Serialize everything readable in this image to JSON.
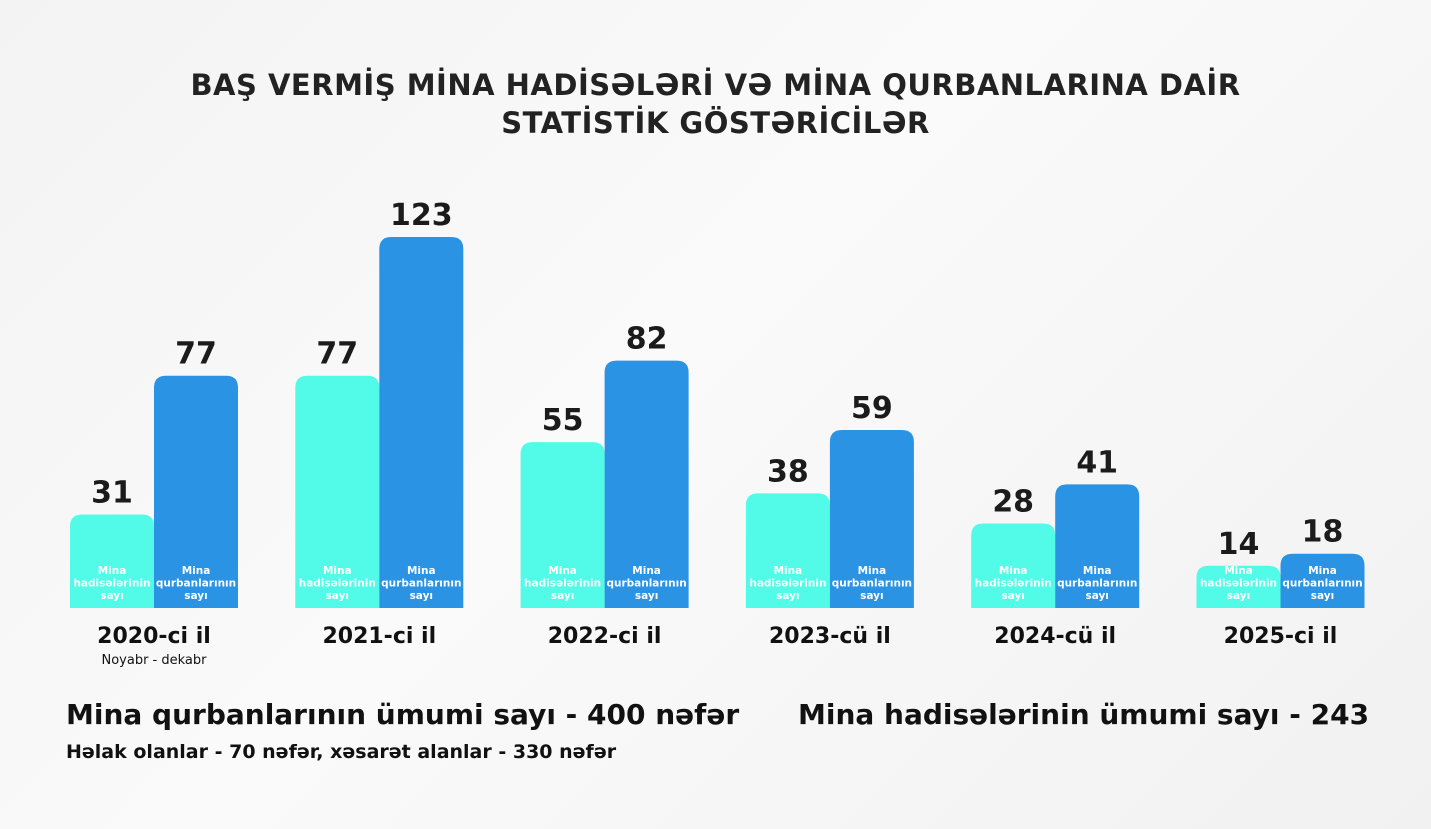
{
  "title": {
    "line1": "BAŞ VERMİŞ MİNA HADİSƏLƏRİ VƏ MİNA QURBANLARINA DAİR",
    "line2": "STATİSTİK GÖSTƏRİCİLƏR"
  },
  "colors": {
    "incidents": "#52fbe8",
    "victims": "#2a93e4",
    "text": "#1b1b1b",
    "inner_label": "#ffffff"
  },
  "chart_data": {
    "type": "bar",
    "categories": [
      "2020-ci il",
      "2021-ci il",
      "2022-ci il",
      "2023-cü il",
      "2024-cü il",
      "2025-ci il"
    ],
    "category_sublabels": [
      "Noyabr - dekabr",
      "",
      "",
      "",
      "",
      ""
    ],
    "series": [
      {
        "name": "Mina hadisələrinin sayı",
        "color": "#52fbe8",
        "values": [
          31,
          77,
          55,
          38,
          28,
          14
        ]
      },
      {
        "name": "Mina qurbanlarının sayı",
        "color": "#2a93e4",
        "values": [
          77,
          123,
          82,
          59,
          41,
          18
        ]
      }
    ],
    "bar_inner_labels": [
      [
        "Mina",
        "hadisələrinin",
        "sayı"
      ],
      [
        "Mina",
        "qurbanlarının",
        "sayı"
      ]
    ],
    "ylim": [
      0,
      123
    ],
    "grid": false,
    "legend": "none",
    "data_labels": true
  },
  "summary": {
    "victims_total": "Mina qurbanlarının ümumi sayı - 400 nəfər",
    "victims_breakdown": "Həlak olanlar - 70 nəfər, xəsarət alanlar - 330 nəfər",
    "incidents_total": "Mina hadisələrinin ümumi sayı - 243"
  }
}
